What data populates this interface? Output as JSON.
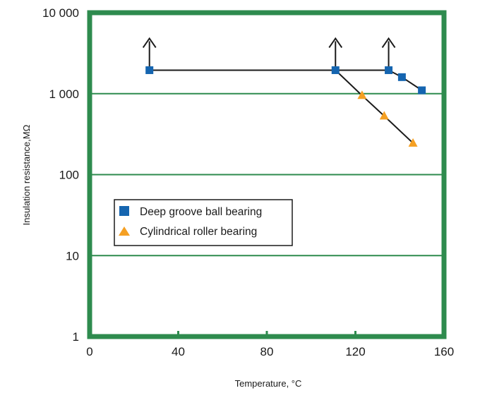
{
  "chart_data": {
    "type": "line",
    "xlabel": "Temperature, °C",
    "ylabel": "Insulation resistance,MΩ",
    "xlim": [
      0,
      160
    ],
    "ylim": [
      1,
      10000
    ],
    "y_scale": "log",
    "x_ticks": [
      {
        "value": 0,
        "label": "0"
      },
      {
        "value": 40,
        "label": "40"
      },
      {
        "value": 80,
        "label": "80"
      },
      {
        "value": 120,
        "label": "120"
      },
      {
        "value": 160,
        "label": "160"
      }
    ],
    "y_ticks": [
      {
        "value": 1,
        "label": "1"
      },
      {
        "value": 10,
        "label": "10"
      },
      {
        "value": 100,
        "label": "100"
      },
      {
        "value": 1000,
        "label": "1 000"
      },
      {
        "value": 10000,
        "label": "10 000"
      }
    ],
    "grid": "horizontal",
    "legend_position": "center-left",
    "series": [
      {
        "name": "Deep groove ball bearing",
        "marker": "square",
        "color": "#1565b0",
        "x": [
          27,
          111,
          135,
          141,
          150
        ],
        "y": [
          1950,
          1950,
          1950,
          1600,
          1100
        ],
        "arrows_up_at": [
          27,
          111,
          135
        ]
      },
      {
        "name": "Cylindrical roller bearing",
        "marker": "triangle",
        "color": "#f5a023",
        "x": [
          111,
          123,
          133,
          146
        ],
        "y": [
          1950,
          950,
          530,
          245
        ],
        "line_from_ball_series": true
      }
    ]
  },
  "colors": {
    "frame": "#2e8b4e",
    "grid": "#2e8b4e",
    "line": "#1a1a1a",
    "ball_marker": "#1565b0",
    "roller_marker": "#f5a023"
  }
}
